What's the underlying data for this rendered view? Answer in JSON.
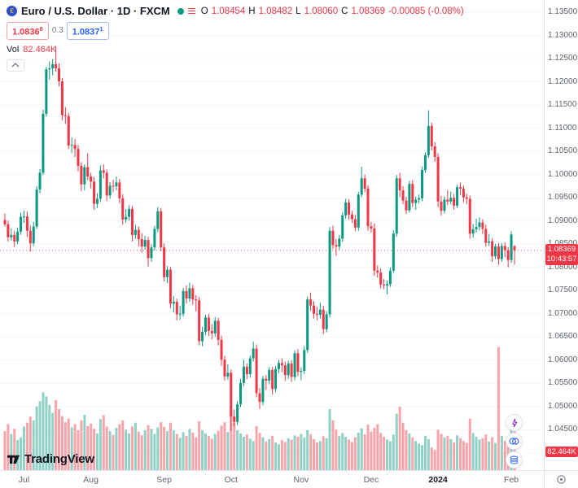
{
  "header": {
    "title": "Euro / U.S. Dollar · 1D · FXCM",
    "ohlc": {
      "o_label": "O",
      "o": "1.08454",
      "h_label": "H",
      "h": "1.08482",
      "l_label": "L",
      "l": "1.08060",
      "c_label": "C",
      "c": "1.08369",
      "change": "-0.00085 (-0.08%)"
    },
    "bid": {
      "main": "1.0836",
      "sup": "8"
    },
    "spread": "0.3",
    "ask": {
      "main": "1.0837",
      "sup": "1"
    },
    "vol_label": "Vol",
    "vol_value": "82.464K"
  },
  "price_scale": {
    "current_price": "1.08369",
    "countdown": "10:43:57",
    "volume_badge": "82.464K",
    "labels": [
      "1.13500",
      "1.13000",
      "1.12500",
      "1.12000",
      "1.11500",
      "1.11000",
      "1.10500",
      "1.10000",
      "1.09500",
      "1.09000",
      "1.08500",
      "1.08000",
      "1.07500",
      "1.07000",
      "1.06500",
      "1.06000",
      "1.05500",
      "1.05000",
      "1.04500",
      "1.04000"
    ]
  },
  "time_scale": {
    "months": [
      {
        "index": 6,
        "label": "Jul",
        "strong": false
      },
      {
        "index": 27,
        "label": "Aug",
        "strong": false
      },
      {
        "index": 50,
        "label": "Sep",
        "strong": false
      },
      {
        "index": 71,
        "label": "Oct",
        "strong": false
      },
      {
        "index": 93,
        "label": "Nov",
        "strong": false
      },
      {
        "index": 115,
        "label": "Dec",
        "strong": false
      },
      {
        "index": 136,
        "label": "2024",
        "strong": true
      },
      {
        "index": 159,
        "label": "Feb",
        "strong": false
      }
    ]
  },
  "footer": {
    "logo_text": "TradingView"
  },
  "colors": {
    "up": "#089981",
    "down": "#f23645",
    "vol_up": "rgba(8,153,129,0.45)",
    "vol_down": "rgba(242,54,69,0.45)",
    "accent_blue": "#2962ff",
    "axis_text": "#5d646e",
    "grid": "#f6f7f9"
  },
  "chart_data": {
    "type": "candlestick",
    "title": "Euro / U.S. Dollar",
    "interval": "1D",
    "exchange": "FXCM",
    "y_axis": {
      "min": 1.04,
      "max": 1.135,
      "step": 0.005
    },
    "volume_axis": {
      "max_k": 260
    },
    "last": {
      "open": 1.08454,
      "high": 1.08482,
      "low": 1.0806,
      "close": 1.08369,
      "volume_k": 82.464
    },
    "candles": [
      [
        1.0902,
        1.0916,
        1.0888,
        1.0893,
        83
      ],
      [
        1.0893,
        1.0901,
        1.0856,
        1.0865,
        98
      ],
      [
        1.0865,
        1.0884,
        1.0858,
        1.087,
        77
      ],
      [
        1.087,
        1.0879,
        1.0844,
        1.0856,
        88
      ],
      [
        1.0856,
        1.0886,
        1.085,
        1.0877,
        64
      ],
      [
        1.0877,
        1.0918,
        1.087,
        1.0909,
        70
      ],
      [
        1.0909,
        1.0922,
        1.0896,
        1.091,
        93
      ],
      [
        1.091,
        1.0921,
        1.0866,
        1.0879,
        101
      ],
      [
        1.0879,
        1.089,
        1.0834,
        1.0852,
        114
      ],
      [
        1.0852,
        1.0898,
        1.0846,
        1.0888,
        106
      ],
      [
        1.0888,
        1.0975,
        1.0883,
        1.0968,
        136
      ],
      [
        1.0968,
        1.1012,
        1.096,
        1.1004,
        147
      ],
      [
        1.1004,
        1.114,
        1.0999,
        1.1131,
        166
      ],
      [
        1.1131,
        1.1232,
        1.1125,
        1.1227,
        157
      ],
      [
        1.1227,
        1.1244,
        1.1205,
        1.1229,
        139
      ],
      [
        1.1229,
        1.1249,
        1.1214,
        1.1238,
        122
      ],
      [
        1.1238,
        1.1276,
        1.1222,
        1.1229,
        149
      ],
      [
        1.1229,
        1.124,
        1.119,
        1.1201,
        130
      ],
      [
        1.1201,
        1.1208,
        1.1117,
        1.1128,
        115
      ],
      [
        1.1128,
        1.1146,
        1.1109,
        1.1126,
        102
      ],
      [
        1.1126,
        1.1133,
        1.1055,
        1.1063,
        110
      ],
      [
        1.1063,
        1.108,
        1.1046,
        1.1064,
        91
      ],
      [
        1.1064,
        1.1077,
        1.1038,
        1.1055,
        98
      ],
      [
        1.1055,
        1.1064,
        1.1007,
        1.1019,
        85
      ],
      [
        1.1019,
        1.1027,
        1.0964,
        1.0979,
        106
      ],
      [
        1.0979,
        1.1022,
        1.0966,
        1.1016,
        118
      ],
      [
        1.1016,
        1.1046,
        1.0988,
        1.0996,
        94
      ],
      [
        1.0996,
        1.1004,
        1.097,
        1.0985,
        99
      ],
      [
        1.0985,
        1.0995,
        1.0924,
        1.0937,
        88
      ],
      [
        1.0937,
        1.096,
        1.0928,
        1.0948,
        78
      ],
      [
        1.0948,
        1.102,
        1.0942,
        1.1009,
        109
      ],
      [
        1.1009,
        1.1022,
        1.0992,
        1.1004,
        117
      ],
      [
        1.1004,
        1.1011,
        1.0943,
        1.0955,
        93
      ],
      [
        1.0955,
        1.0984,
        1.0948,
        1.0976,
        83
      ],
      [
        1.0976,
        1.0989,
        1.0962,
        1.0975,
        75
      ],
      [
        1.0975,
        1.0996,
        1.0966,
        1.0983,
        90
      ],
      [
        1.0983,
        1.0991,
        1.0938,
        1.0949,
        98
      ],
      [
        1.0949,
        1.0958,
        1.0892,
        1.0903,
        106
      ],
      [
        1.0903,
        1.0926,
        1.0896,
        1.0909,
        86
      ],
      [
        1.0909,
        1.0934,
        1.0901,
        1.0926,
        78
      ],
      [
        1.0926,
        1.0932,
        1.0856,
        1.087,
        93
      ],
      [
        1.087,
        1.0892,
        1.0862,
        1.0881,
        101
      ],
      [
        1.0881,
        1.0888,
        1.0845,
        1.0861,
        82
      ],
      [
        1.0861,
        1.0874,
        1.0832,
        1.0845,
        74
      ],
      [
        1.0845,
        1.0868,
        1.0838,
        1.0859,
        85
      ],
      [
        1.0859,
        1.0866,
        1.0802,
        1.082,
        96
      ],
      [
        1.082,
        1.085,
        1.0812,
        1.0843,
        88
      ],
      [
        1.0843,
        1.089,
        1.0836,
        1.0883,
        77
      ],
      [
        1.0883,
        1.093,
        1.0876,
        1.0921,
        91
      ],
      [
        1.0921,
        1.0928,
        1.0835,
        1.0843,
        102
      ],
      [
        1.0843,
        1.0852,
        1.077,
        1.0779,
        92
      ],
      [
        1.0779,
        1.0803,
        1.0766,
        1.0795,
        83
      ],
      [
        1.0795,
        1.0801,
        1.0712,
        1.0722,
        101
      ],
      [
        1.0722,
        1.0738,
        1.0703,
        1.0726,
        85
      ],
      [
        1.0726,
        1.0733,
        1.0686,
        1.0699,
        77
      ],
      [
        1.0699,
        1.0717,
        1.0688,
        1.07,
        69
      ],
      [
        1.07,
        1.0756,
        1.0694,
        1.0749,
        81
      ],
      [
        1.0749,
        1.0761,
        1.0722,
        1.0733,
        73
      ],
      [
        1.0733,
        1.0767,
        1.0726,
        1.0755,
        88
      ],
      [
        1.0755,
        1.0762,
        1.072,
        1.0731,
        80
      ],
      [
        1.0731,
        1.074,
        1.0705,
        1.0729,
        70
      ],
      [
        1.0729,
        1.0736,
        1.0632,
        1.0641,
        104
      ],
      [
        1.0641,
        1.0672,
        1.063,
        1.0661,
        85
      ],
      [
        1.0661,
        1.0698,
        1.0654,
        1.0692,
        78
      ],
      [
        1.0692,
        1.07,
        1.0652,
        1.0663,
        73
      ],
      [
        1.0663,
        1.0678,
        1.0645,
        1.0658,
        67
      ],
      [
        1.0658,
        1.0693,
        1.065,
        1.0685,
        77
      ],
      [
        1.0685,
        1.0691,
        1.0632,
        1.0644,
        84
      ],
      [
        1.0644,
        1.0653,
        1.0588,
        1.0601,
        95
      ],
      [
        1.0601,
        1.061,
        1.0556,
        1.0565,
        102
      ],
      [
        1.0565,
        1.0591,
        1.0558,
        1.0573,
        81
      ],
      [
        1.0573,
        1.058,
        1.0448,
        1.0479,
        120
      ],
      [
        1.0479,
        1.0494,
        1.0458,
        1.0467,
        101
      ],
      [
        1.0467,
        1.0512,
        1.046,
        1.0505,
        85
      ],
      [
        1.0505,
        1.056,
        1.0499,
        1.0551,
        78
      ],
      [
        1.0551,
        1.0601,
        1.0544,
        1.0586,
        71
      ],
      [
        1.0586,
        1.0593,
        1.0559,
        1.057,
        76
      ],
      [
        1.057,
        1.061,
        1.0562,
        1.0604,
        67
      ],
      [
        1.0604,
        1.064,
        1.0597,
        1.0625,
        62
      ],
      [
        1.0625,
        1.0634,
        1.052,
        1.0529,
        94
      ],
      [
        1.0529,
        1.054,
        1.0495,
        1.051,
        79
      ],
      [
        1.051,
        1.0566,
        1.0503,
        1.056,
        70
      ],
      [
        1.056,
        1.0568,
        1.0536,
        1.0556,
        61
      ],
      [
        1.0556,
        1.0585,
        1.0548,
        1.0579,
        66
      ],
      [
        1.0579,
        1.0586,
        1.0526,
        1.0538,
        73
      ],
      [
        1.0538,
        1.0587,
        1.0531,
        1.0581,
        59
      ],
      [
        1.0581,
        1.0601,
        1.0572,
        1.0594,
        55
      ],
      [
        1.0594,
        1.0604,
        1.0574,
        1.0589,
        64
      ],
      [
        1.0589,
        1.0597,
        1.0555,
        1.0568,
        60
      ],
      [
        1.0568,
        1.0599,
        1.056,
        1.0593,
        68
      ],
      [
        1.0593,
        1.06,
        1.0553,
        1.0564,
        65
      ],
      [
        1.0564,
        1.0621,
        1.0557,
        1.0615,
        74
      ],
      [
        1.0615,
        1.0624,
        1.0566,
        1.0575,
        71
      ],
      [
        1.0575,
        1.0585,
        1.0557,
        1.0577,
        77
      ],
      [
        1.0577,
        1.063,
        1.057,
        1.0622,
        70
      ],
      [
        1.0622,
        1.0737,
        1.0616,
        1.0731,
        85
      ],
      [
        1.0731,
        1.0746,
        1.0706,
        1.0718,
        76
      ],
      [
        1.0718,
        1.0727,
        1.069,
        1.07,
        66
      ],
      [
        1.07,
        1.0715,
        1.0686,
        1.0698,
        59
      ],
      [
        1.0698,
        1.0724,
        1.069,
        1.0709,
        62
      ],
      [
        1.0709,
        1.0717,
        1.0656,
        1.0667,
        72
      ],
      [
        1.0667,
        1.0706,
        1.066,
        1.0699,
        68
      ],
      [
        1.0699,
        1.0887,
        1.0692,
        1.0879,
        130
      ],
      [
        1.0879,
        1.089,
        1.084,
        1.0848,
        106
      ],
      [
        1.0848,
        1.0861,
        1.0825,
        1.0845,
        86
      ],
      [
        1.0845,
        1.087,
        1.0838,
        1.0862,
        73
      ],
      [
        1.0862,
        1.0919,
        1.0855,
        1.0912,
        79
      ],
      [
        1.0912,
        1.0948,
        1.0905,
        1.094,
        71
      ],
      [
        1.094,
        1.0947,
        1.0903,
        1.0914,
        65
      ],
      [
        1.0914,
        1.0922,
        1.0896,
        1.0904,
        60
      ],
      [
        1.0904,
        1.0913,
        1.0878,
        1.0886,
        70
      ],
      [
        1.0886,
        1.0963,
        1.0879,
        1.0957,
        80
      ],
      [
        1.0957,
        1.1017,
        1.0951,
        1.0992,
        89
      ],
      [
        1.0992,
        1.1,
        1.0962,
        1.097,
        76
      ],
      [
        1.097,
        1.0977,
        1.0879,
        1.0889,
        97
      ],
      [
        1.0889,
        1.0898,
        1.0875,
        1.0884,
        82
      ],
      [
        1.0884,
        1.0895,
        1.0782,
        1.0793,
        90
      ],
      [
        1.0793,
        1.0804,
        1.0778,
        1.0789,
        98
      ],
      [
        1.0789,
        1.0798,
        1.0755,
        1.0763,
        79
      ],
      [
        1.0763,
        1.0775,
        1.0753,
        1.0761,
        71
      ],
      [
        1.0761,
        1.0772,
        1.0742,
        1.0764,
        65
      ],
      [
        1.0764,
        1.08,
        1.0758,
        1.0793,
        61
      ],
      [
        1.0793,
        1.088,
        1.0788,
        1.0873,
        76
      ],
      [
        1.0873,
        1.0999,
        1.0866,
        1.0992,
        120
      ],
      [
        1.0992,
        1.1004,
        1.0952,
        1.0966,
        135
      ],
      [
        1.0966,
        1.0975,
        1.0936,
        1.0944,
        101
      ],
      [
        1.0944,
        1.0952,
        1.0915,
        1.0923,
        85
      ],
      [
        1.0923,
        1.0987,
        1.0918,
        1.098,
        78
      ],
      [
        1.098,
        1.0988,
        1.093,
        1.0939,
        70
      ],
      [
        1.0939,
        1.0953,
        1.0924,
        1.0946,
        62
      ],
      [
        1.0946,
        1.0957,
        1.0938,
        1.0949,
        56
      ],
      [
        1.0949,
        1.1017,
        1.0943,
        1.101,
        53
      ],
      [
        1.101,
        1.1048,
        1.1004,
        1.1042,
        73
      ],
      [
        1.1042,
        1.1139,
        1.1036,
        1.1105,
        66
      ],
      [
        1.1105,
        1.1112,
        1.1052,
        1.1061,
        48
      ],
      [
        1.1061,
        1.107,
        1.1028,
        1.1038,
        43
      ],
      [
        1.1038,
        1.1046,
        1.093,
        1.0942,
        86
      ],
      [
        1.0942,
        1.0954,
        1.0912,
        1.0922,
        77
      ],
      [
        1.0922,
        1.0953,
        1.0916,
        1.0946,
        70
      ],
      [
        1.0946,
        1.0966,
        1.0934,
        1.0942,
        73
      ],
      [
        1.0942,
        1.0963,
        1.0936,
        1.095,
        66
      ],
      [
        1.095,
        1.0958,
        1.0924,
        1.0933,
        59
      ],
      [
        1.0933,
        1.0978,
        1.0928,
        1.0973,
        74
      ],
      [
        1.0973,
        1.0983,
        1.0956,
        1.097,
        68
      ],
      [
        1.097,
        1.0976,
        1.094,
        1.0951,
        62
      ],
      [
        1.0951,
        1.0959,
        1.0936,
        1.0948,
        58
      ],
      [
        1.0948,
        1.0955,
        1.0862,
        1.0873,
        110
      ],
      [
        1.0873,
        1.0894,
        1.0864,
        1.0882,
        79
      ],
      [
        1.0882,
        1.0905,
        1.0875,
        1.0887,
        71
      ],
      [
        1.0887,
        1.0908,
        1.088,
        1.0897,
        65
      ],
      [
        1.0897,
        1.0904,
        1.0872,
        1.0883,
        68
      ],
      [
        1.0883,
        1.0892,
        1.0845,
        1.0853,
        76
      ],
      [
        1.0853,
        1.0872,
        1.0846,
        1.0856,
        61
      ],
      [
        1.0856,
        1.0863,
        1.0812,
        1.0824,
        70
      ],
      [
        1.0824,
        1.0851,
        1.0818,
        1.0845,
        58
      ],
      [
        1.0845,
        1.0853,
        1.0806,
        1.0818,
        262.4
      ],
      [
        1.0818,
        1.0852,
        1.0812,
        1.0846,
        73
      ],
      [
        1.0846,
        1.0854,
        1.0822,
        1.0837,
        62
      ],
      [
        1.0837,
        1.0844,
        1.08,
        1.0816,
        70
      ],
      [
        1.0816,
        1.0878,
        1.081,
        1.0871,
        110
      ],
      [
        1.08454,
        1.08482,
        1.0806,
        1.08369,
        82.464
      ]
    ]
  }
}
